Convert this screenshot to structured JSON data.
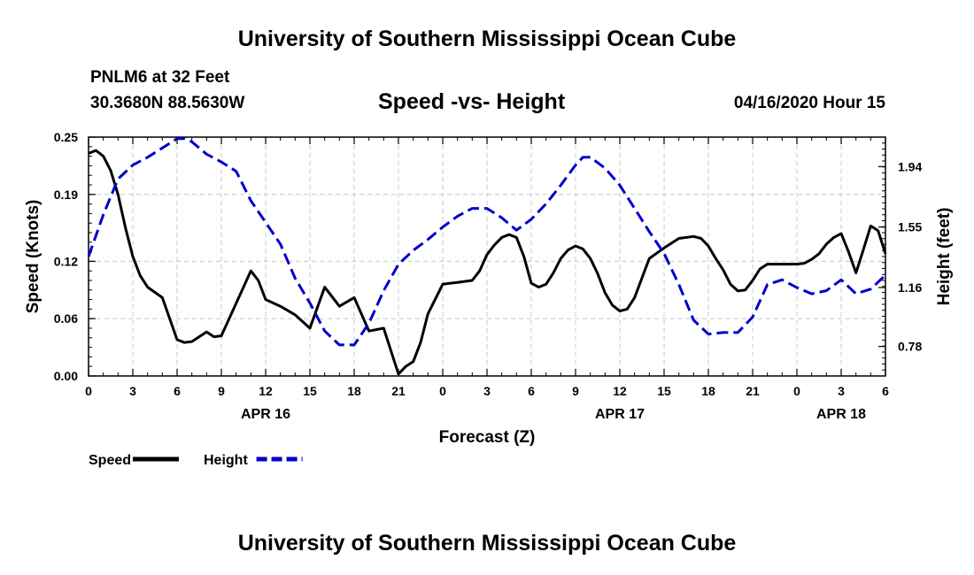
{
  "header": {
    "title": "University of Southern Mississippi Ocean Cube",
    "station": "PNLM6 at 32 Feet",
    "coords": "30.3680N 88.5630W",
    "subtitle": "Speed -vs- Height",
    "forecast_time": "04/16/2020 Hour 15"
  },
  "footer": {
    "title": "University of Southern Mississippi Ocean Cube"
  },
  "colors": {
    "speed": "#000000",
    "height": "#0000cc",
    "grid": "#c8c8c8"
  },
  "chart_data": {
    "type": "line",
    "title": "Speed -vs- Height",
    "xlabel": "Forecast (Z)",
    "ylabel_left": "Speed (Knots)",
    "ylabel_right": "Height (feet)",
    "x_range_hours": [
      0,
      54
    ],
    "x_ticks": [
      {
        "h": 0,
        "label": "0"
      },
      {
        "h": 3,
        "label": "3"
      },
      {
        "h": 6,
        "label": "6"
      },
      {
        "h": 9,
        "label": "9"
      },
      {
        "h": 12,
        "label": "12"
      },
      {
        "h": 15,
        "label": "15"
      },
      {
        "h": 18,
        "label": "18"
      },
      {
        "h": 21,
        "label": "21"
      },
      {
        "h": 24,
        "label": "0"
      },
      {
        "h": 27,
        "label": "3"
      },
      {
        "h": 30,
        "label": "6"
      },
      {
        "h": 33,
        "label": "9"
      },
      {
        "h": 36,
        "label": "12"
      },
      {
        "h": 39,
        "label": "15"
      },
      {
        "h": 42,
        "label": "18"
      },
      {
        "h": 45,
        "label": "21"
      },
      {
        "h": 48,
        "label": "0"
      },
      {
        "h": 51,
        "label": "3"
      },
      {
        "h": 54,
        "label": "6"
      }
    ],
    "date_labels": [
      {
        "h": 12,
        "label": "APR 16"
      },
      {
        "h": 36,
        "label": "APR 17"
      },
      {
        "h": 51,
        "label": "APR 18"
      }
    ],
    "y_left": {
      "range": [
        0,
        0.25
      ],
      "ticks": [
        0.0,
        0.06,
        0.12,
        0.19,
        0.25
      ],
      "tick_labels": [
        "0.00",
        "0.06",
        "0.12",
        "0.19",
        "0.25"
      ]
    },
    "y_right": {
      "range": [
        0.59,
        2.13
      ],
      "ticks": [
        0.78,
        1.16,
        1.55,
        1.94
      ],
      "tick_labels": [
        "0.78",
        "1.16",
        "1.55",
        "1.94"
      ]
    },
    "legend": [
      {
        "name": "Speed",
        "style": "solid"
      },
      {
        "name": "Height",
        "style": "dashed"
      }
    ],
    "series": [
      {
        "name": "Speed",
        "axis": "left",
        "style": "solid",
        "x": [
          0,
          0.5,
          1,
          1.5,
          2,
          2.5,
          3,
          3.5,
          4,
          5,
          6,
          6.5,
          7,
          8,
          8.5,
          9,
          10,
          11,
          11.5,
          12,
          13,
          14,
          15,
          16,
          17,
          18,
          19,
          20,
          21,
          21.5,
          22,
          22.5,
          23,
          24,
          25,
          26,
          26.5,
          27,
          27.5,
          28,
          28.5,
          29,
          29.5,
          30,
          30.5,
          31,
          31.5,
          32,
          32.5,
          33,
          33.5,
          34,
          34.5,
          35,
          35.5,
          36,
          36.5,
          37,
          38,
          39,
          40,
          41,
          41.5,
          42,
          42.5,
          43,
          43.5,
          44,
          44.5,
          45,
          45.5,
          46,
          47,
          48,
          48.5,
          49,
          49.5,
          50,
          50.5,
          51,
          51.5,
          52,
          52.5,
          53,
          53.5,
          54
        ],
        "values": [
          0.233,
          0.236,
          0.23,
          0.215,
          0.19,
          0.155,
          0.125,
          0.105,
          0.093,
          0.082,
          0.038,
          0.035,
          0.036,
          0.046,
          0.041,
          0.042,
          0.076,
          0.11,
          0.1,
          0.08,
          0.073,
          0.064,
          0.05,
          0.093,
          0.073,
          0.082,
          0.047,
          0.05,
          0.002,
          0.01,
          0.015,
          0.035,
          0.065,
          0.096,
          0.098,
          0.1,
          0.11,
          0.127,
          0.137,
          0.145,
          0.148,
          0.145,
          0.125,
          0.097,
          0.093,
          0.096,
          0.108,
          0.123,
          0.132,
          0.136,
          0.133,
          0.123,
          0.107,
          0.087,
          0.074,
          0.068,
          0.07,
          0.082,
          0.123,
          0.134,
          0.144,
          0.146,
          0.144,
          0.136,
          0.123,
          0.111,
          0.096,
          0.089,
          0.09,
          0.1,
          0.112,
          0.117,
          0.117,
          0.117,
          0.118,
          0.122,
          0.128,
          0.138,
          0.145,
          0.149,
          0.13,
          0.108,
          0.132,
          0.157,
          0.152,
          0.128
        ]
      },
      {
        "name": "Height",
        "axis": "right",
        "style": "dashed",
        "x": [
          0,
          1,
          2,
          3,
          4,
          5,
          6,
          6.5,
          7,
          8,
          9,
          10,
          11,
          12,
          13,
          14,
          15,
          16,
          17,
          18,
          19,
          20,
          21,
          22,
          23,
          24,
          25,
          26,
          27,
          28,
          29,
          30,
          31,
          32,
          33,
          33.5,
          34,
          35,
          36,
          37,
          38,
          39,
          40,
          41,
          42,
          43,
          44,
          45,
          46,
          47,
          48,
          49,
          50,
          51,
          52,
          53,
          54
        ],
        "values": [
          1.36,
          1.63,
          1.86,
          1.95,
          2.0,
          2.06,
          2.12,
          2.12,
          2.1,
          2.02,
          1.97,
          1.91,
          1.72,
          1.58,
          1.44,
          1.22,
          1.06,
          0.88,
          0.79,
          0.79,
          0.93,
          1.14,
          1.31,
          1.4,
          1.47,
          1.55,
          1.62,
          1.67,
          1.67,
          1.61,
          1.53,
          1.6,
          1.7,
          1.82,
          1.95,
          2.0,
          2.0,
          1.93,
          1.82,
          1.67,
          1.52,
          1.38,
          1.18,
          0.95,
          0.86,
          0.87,
          0.87,
          0.97,
          1.18,
          1.21,
          1.16,
          1.12,
          1.14,
          1.21,
          1.12,
          1.15,
          1.24
        ]
      }
    ]
  }
}
